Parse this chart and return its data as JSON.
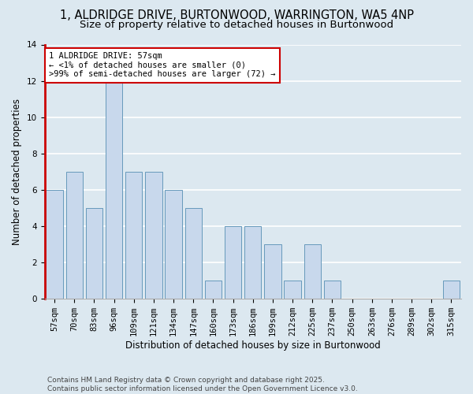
{
  "title_line1": "1, ALDRIDGE DRIVE, BURTONWOOD, WARRINGTON, WA5 4NP",
  "title_line2": "Size of property relative to detached houses in Burtonwood",
  "xlabel": "Distribution of detached houses by size in Burtonwood",
  "ylabel": "Number of detached properties",
  "categories": [
    "57sqm",
    "70sqm",
    "83sqm",
    "96sqm",
    "109sqm",
    "121sqm",
    "134sqm",
    "147sqm",
    "160sqm",
    "173sqm",
    "186sqm",
    "199sqm",
    "212sqm",
    "225sqm",
    "237sqm",
    "250sqm",
    "263sqm",
    "276sqm",
    "289sqm",
    "302sqm",
    "315sqm"
  ],
  "values": [
    6,
    7,
    5,
    12,
    7,
    7,
    6,
    5,
    1,
    4,
    4,
    3,
    1,
    3,
    1,
    0,
    0,
    0,
    0,
    0,
    1
  ],
  "bar_color": "#c8d8ec",
  "bar_edge_color": "#6699bb",
  "annotation_text": "1 ALDRIDGE DRIVE: 57sqm\n← <1% of detached houses are smaller (0)\n>99% of semi-detached houses are larger (72) →",
  "annotation_box_color": "white",
  "annotation_box_edge_color": "#cc0000",
  "ylim": [
    0,
    14
  ],
  "yticks": [
    0,
    2,
    4,
    6,
    8,
    10,
    12,
    14
  ],
  "background_color": "#dce8f0",
  "plot_bg_color": "#dce8f0",
  "grid_color": "white",
  "footer_line1": "Contains HM Land Registry data © Crown copyright and database right 2025.",
  "footer_line2": "Contains public sector information licensed under the Open Government Licence v3.0.",
  "title_fontsize": 10.5,
  "subtitle_fontsize": 9.5,
  "axis_label_fontsize": 8.5,
  "tick_fontsize": 7.5,
  "annotation_fontsize": 7.5,
  "footer_fontsize": 6.5
}
